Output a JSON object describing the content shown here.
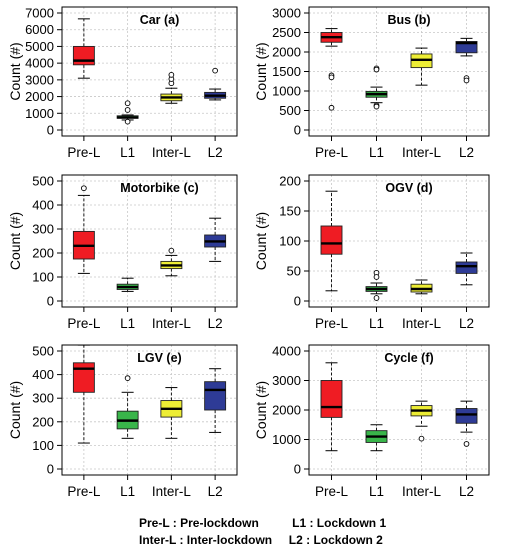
{
  "chart_data": [
    {
      "type": "box",
      "title": "Car (a)",
      "ylabel": "Count (#)",
      "categories": [
        "Pre-L",
        "L1",
        "Inter-L",
        "L2"
      ],
      "ylim": [
        0,
        7000
      ],
      "yticks": [
        0,
        1000,
        2000,
        3000,
        4000,
        5000,
        6000,
        7000
      ],
      "colors": [
        "#ef1c23",
        "#39b54a",
        "#eded35",
        "#2e3b96"
      ],
      "boxes": [
        {
          "min": 3100,
          "q1": 3900,
          "median": 4150,
          "q3": 5000,
          "max": 6650,
          "outliers": []
        },
        {
          "min": 600,
          "q1": 700,
          "median": 750,
          "q3": 850,
          "max": 900,
          "outliers": [
            1200,
            1600,
            500
          ]
        },
        {
          "min": 1600,
          "q1": 1750,
          "median": 1950,
          "q3": 2150,
          "max": 2500,
          "outliers": [
            2800,
            3050,
            3300
          ]
        },
        {
          "min": 1800,
          "q1": 1900,
          "median": 2050,
          "q3": 2250,
          "max": 2450,
          "outliers": [
            3550
          ]
        }
      ]
    },
    {
      "type": "box",
      "title": "Bus (b)",
      "ylabel": "Count (#)",
      "categories": [
        "Pre-L",
        "L1",
        "Inter-L",
        "L2"
      ],
      "ylim": [
        0,
        3000
      ],
      "yticks": [
        0,
        500,
        1000,
        1500,
        2000,
        2500,
        3000
      ],
      "colors": [
        "#ef1c23",
        "#39b54a",
        "#eded35",
        "#2e3b96"
      ],
      "boxes": [
        {
          "min": 2150,
          "q1": 2250,
          "median": 2380,
          "q3": 2500,
          "max": 2600,
          "outliers": [
            1400,
            1350,
            570
          ]
        },
        {
          "min": 700,
          "q1": 840,
          "median": 920,
          "q3": 990,
          "max": 1100,
          "outliers": [
            1580,
            1550,
            630,
            600
          ]
        },
        {
          "min": 1150,
          "q1": 1600,
          "median": 1800,
          "q3": 1950,
          "max": 2100,
          "outliers": []
        },
        {
          "min": 1900,
          "q1": 1980,
          "median": 2230,
          "q3": 2270,
          "max": 2350,
          "outliers": [
            1330,
            1270
          ]
        }
      ]
    },
    {
      "type": "box",
      "title": "Motorbike (c)",
      "ylabel": "Count (#)",
      "categories": [
        "Pre-L",
        "L1",
        "Inter-L",
        "L2"
      ],
      "ylim": [
        0,
        500
      ],
      "yticks": [
        0,
        100,
        200,
        300,
        400,
        500
      ],
      "colors": [
        "#ef1c23",
        "#39b54a",
        "#eded35",
        "#2e3b96"
      ],
      "boxes": [
        {
          "min": 115,
          "q1": 175,
          "median": 230,
          "q3": 290,
          "max": 440,
          "outliers": [
            470
          ]
        },
        {
          "min": 40,
          "q1": 48,
          "median": 58,
          "q3": 70,
          "max": 95,
          "outliers": []
        },
        {
          "min": 105,
          "q1": 135,
          "median": 148,
          "q3": 165,
          "max": 190,
          "outliers": [
            210
          ]
        },
        {
          "min": 165,
          "q1": 225,
          "median": 248,
          "q3": 275,
          "max": 345,
          "outliers": []
        }
      ]
    },
    {
      "type": "box",
      "title": "OGV (d)",
      "ylabel": "Count (#)",
      "categories": [
        "Pre-L",
        "L1",
        "Inter-L",
        "L2"
      ],
      "ylim": [
        0,
        200
      ],
      "yticks": [
        0,
        50,
        100,
        150,
        200
      ],
      "colors": [
        "#ef1c23",
        "#39b54a",
        "#eded35",
        "#2e3b96"
      ],
      "boxes": [
        {
          "min": 17,
          "q1": 78,
          "median": 96,
          "q3": 125,
          "max": 183,
          "outliers": []
        },
        {
          "min": 12,
          "q1": 16,
          "median": 20,
          "q3": 24,
          "max": 30,
          "outliers": [
            47,
            40,
            5
          ]
        },
        {
          "min": 12,
          "q1": 15,
          "median": 20,
          "q3": 28,
          "max": 35,
          "outliers": []
        },
        {
          "min": 27,
          "q1": 46,
          "median": 58,
          "q3": 65,
          "max": 80,
          "outliers": []
        }
      ]
    },
    {
      "type": "box",
      "title": "LGV (e)",
      "ylabel": "Count (#)",
      "categories": [
        "Pre-L",
        "L1",
        "Inter-L",
        "L2"
      ],
      "ylim": [
        0,
        500
      ],
      "yticks": [
        0,
        100,
        200,
        300,
        400,
        500
      ],
      "colors": [
        "#ef1c23",
        "#39b54a",
        "#eded35",
        "#2e3b96"
      ],
      "boxes": [
        {
          "min": 110,
          "q1": 325,
          "median": 425,
          "q3": 450,
          "max": 525,
          "outliers": []
        },
        {
          "min": 130,
          "q1": 170,
          "median": 205,
          "q3": 245,
          "max": 325,
          "outliers": [
            385
          ]
        },
        {
          "min": 130,
          "q1": 220,
          "median": 255,
          "q3": 290,
          "max": 345,
          "outliers": []
        },
        {
          "min": 155,
          "q1": 250,
          "median": 335,
          "q3": 370,
          "max": 425,
          "outliers": []
        }
      ]
    },
    {
      "type": "box",
      "title": "Cycle (f)",
      "ylabel": "Count (#)",
      "categories": [
        "Pre-L",
        "L1",
        "Inter-L",
        "L2"
      ],
      "ylim": [
        0,
        4000
      ],
      "yticks": [
        0,
        1000,
        2000,
        3000,
        4000
      ],
      "colors": [
        "#ef1c23",
        "#39b54a",
        "#eded35",
        "#2e3b96"
      ],
      "boxes": [
        {
          "min": 620,
          "q1": 1750,
          "median": 2100,
          "q3": 3000,
          "max": 3600,
          "outliers": []
        },
        {
          "min": 620,
          "q1": 900,
          "median": 1100,
          "q3": 1300,
          "max": 1500,
          "outliers": []
        },
        {
          "min": 1450,
          "q1": 1800,
          "median": 1980,
          "q3": 2150,
          "max": 2300,
          "outliers": [
            1030
          ]
        },
        {
          "min": 1250,
          "q1": 1550,
          "median": 1850,
          "q3": 2050,
          "max": 2300,
          "outliers": [
            850
          ]
        }
      ]
    }
  ],
  "legend": {
    "row1": "Pre-L : Pre-lockdown          L1 : Lockdown 1",
    "row2": "Inter-L : Inter-lockdown     L2 : Lockdown 2"
  }
}
